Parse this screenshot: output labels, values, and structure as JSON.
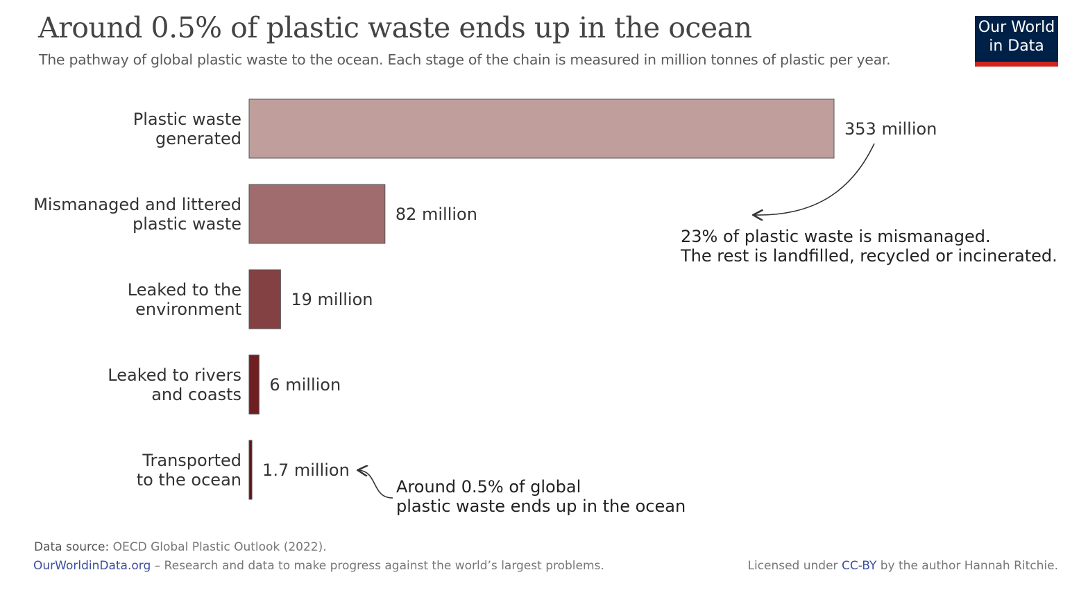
{
  "chart_data": {
    "type": "bar",
    "orientation": "horizontal",
    "title": "Around 0.5% of plastic waste ends up in the ocean",
    "subtitle": "The pathway of global plastic waste to the ocean. Each stage of the chain is measured in million tonnes of plastic per year.",
    "categories": [
      "Plastic waste\ngenerated",
      "Mismanaged and littered\nplastic waste",
      "Leaked to the\nenvironment",
      "Leaked to rivers\nand coasts",
      "Transported\nto the ocean"
    ],
    "values": [
      353,
      82,
      19,
      6,
      1.7
    ],
    "value_labels": [
      "353 million",
      "82 million",
      "19 million",
      "6 million",
      "1.7 million"
    ],
    "colors": [
      "#bf9e9c",
      "#a06c6d",
      "#834143",
      "#6f1f22",
      "#5c1519"
    ],
    "annotations": [
      "23% of plastic waste is mismanaged.\nThe rest is landfilled, recycled or incinerated.",
      "Around 0.5% of global\nplastic waste ends up in the ocean"
    ]
  },
  "logo": "Our World\nin Data",
  "footer": {
    "source_label": "Data source:",
    "source": "OECD Global Plastic Outlook (2022).",
    "site": "OurWorldinData.org",
    "tagline": "– Research and data to make progress against the world’s largest problems.",
    "license_prefix": "Licensed under",
    "license": "CC-BY",
    "license_suffix": "by the author Hannah Ritchie."
  }
}
